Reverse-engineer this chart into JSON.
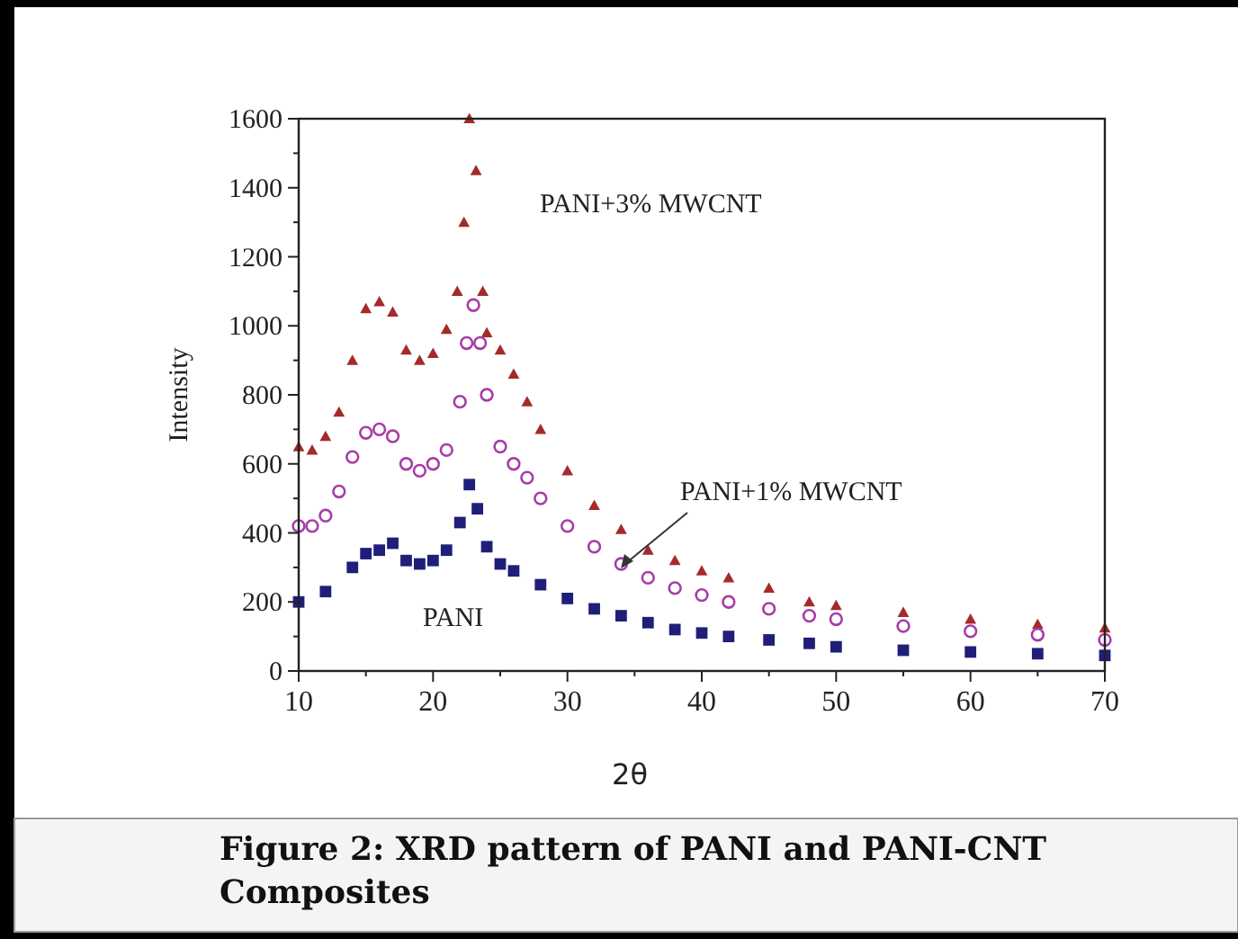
{
  "chart_data": {
    "type": "scatter",
    "title": "Figure 2: XRD pattern of PANI and PANI-CNT Composites",
    "xlabel": "2θ",
    "ylabel": "Intensity",
    "xlim": [
      10,
      70
    ],
    "ylim": [
      0,
      1600
    ],
    "xticks": [
      10,
      {
        "value": 15,
        "label": null
      },
      20,
      {
        "value": 25,
        "label": null
      },
      30,
      {
        "value": 35,
        "label": null
      },
      40,
      {
        "value": 45,
        "label": null
      },
      50,
      {
        "value": 55,
        "label": null
      },
      60,
      {
        "value": 65,
        "label": null
      },
      70
    ],
    "yticks": [
      0,
      {
        "value": 100,
        "label": null
      },
      200,
      {
        "value": 300,
        "label": null
      },
      400,
      {
        "value": 500,
        "label": null
      },
      600,
      {
        "value": 700,
        "label": null
      },
      800,
      {
        "value": 900,
        "label": null
      },
      1000,
      {
        "value": 1100,
        "label": null
      },
      1200,
      {
        "value": 1300,
        "label": null
      },
      1400,
      {
        "value": 1500,
        "label": null
      },
      1600
    ],
    "legend": false,
    "grid": false,
    "series": [
      {
        "name": "PANI+3% MWCNT",
        "color": "#a52a2a",
        "marker": "triangle",
        "x": [
          10,
          11,
          12,
          13,
          14,
          15,
          16,
          17,
          18,
          19,
          20,
          21,
          21.8,
          22.3,
          22.7,
          23.2,
          23.7,
          24,
          25,
          26,
          27,
          28,
          30,
          32,
          34,
          36,
          38,
          40,
          42,
          45,
          48,
          50,
          55,
          60,
          65,
          70
        ],
        "values": [
          650,
          640,
          680,
          750,
          900,
          1050,
          1070,
          1040,
          930,
          900,
          920,
          990,
          1100,
          1300,
          1600,
          1450,
          1100,
          980,
          930,
          860,
          780,
          700,
          580,
          480,
          410,
          350,
          320,
          290,
          270,
          240,
          200,
          190,
          170,
          150,
          135,
          125
        ]
      },
      {
        "name": "PANI+1% MWCNT",
        "color": "#a83ca8",
        "marker": "circle",
        "x": [
          10,
          11,
          12,
          13,
          14,
          15,
          16,
          17,
          18,
          19,
          20,
          21,
          22,
          22.5,
          23,
          23.5,
          24,
          25,
          26,
          27,
          28,
          30,
          32,
          34,
          36,
          38,
          40,
          42,
          45,
          48,
          50,
          55,
          60,
          65,
          70
        ],
        "values": [
          420,
          420,
          450,
          520,
          620,
          690,
          700,
          680,
          600,
          580,
          600,
          640,
          780,
          950,
          1060,
          950,
          800,
          650,
          600,
          560,
          500,
          420,
          360,
          310,
          270,
          240,
          220,
          200,
          180,
          160,
          150,
          130,
          115,
          105,
          90
        ]
      },
      {
        "name": "PANI",
        "color": "#1f1f7a",
        "marker": "square",
        "x": [
          10,
          12,
          14,
          15,
          16,
          17,
          18,
          19,
          20,
          21,
          22,
          22.7,
          23.3,
          24,
          25,
          26,
          28,
          30,
          32,
          34,
          36,
          38,
          40,
          42,
          45,
          48,
          50,
          55,
          60,
          65,
          70
        ],
        "values": [
          200,
          230,
          300,
          340,
          350,
          370,
          320,
          310,
          320,
          350,
          430,
          540,
          470,
          360,
          310,
          290,
          250,
          210,
          180,
          160,
          140,
          120,
          110,
          100,
          90,
          80,
          70,
          60,
          55,
          50,
          45
        ]
      }
    ]
  }
}
